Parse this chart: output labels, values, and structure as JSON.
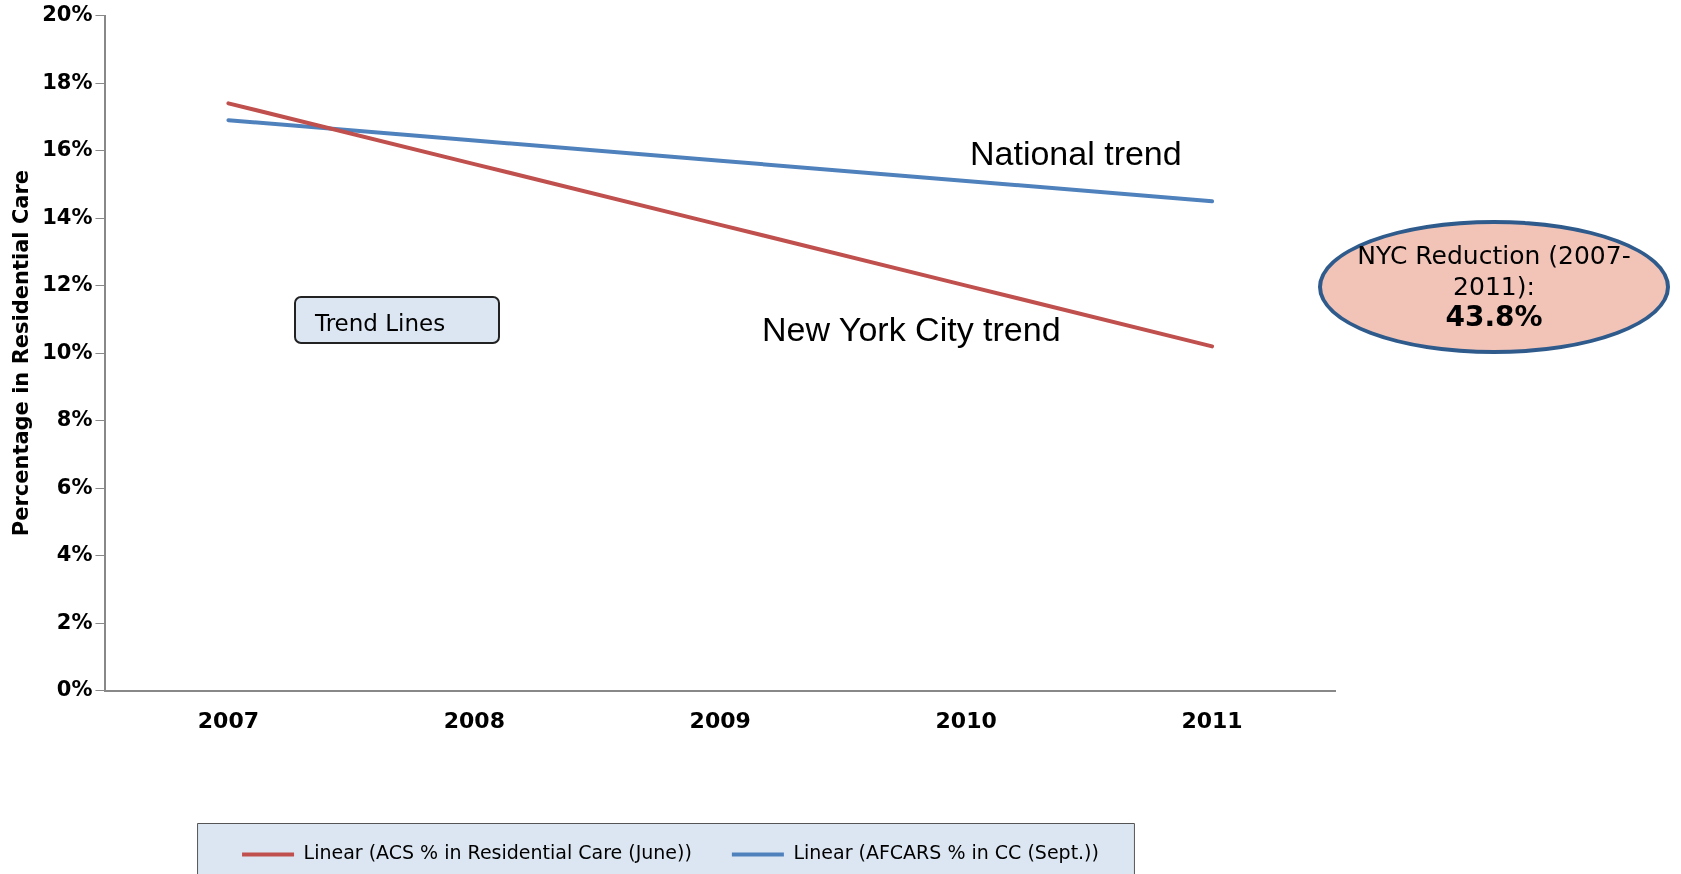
{
  "chart_data": {
    "type": "line",
    "ylabel": "Percentage in Residential Care",
    "categories": [
      "2007",
      "2008",
      "2009",
      "2010",
      "2011"
    ],
    "series": [
      {
        "name": "Linear (ACS % in Residential Care (June))",
        "color": "#c0504d",
        "values": [
          17.4,
          15.6,
          13.8,
          12.0,
          10.2
        ]
      },
      {
        "name": "Linear (AFCARS % in CC (Sept.))",
        "color": "#4f81bd",
        "values": [
          16.9,
          16.3,
          15.7,
          15.1,
          14.5
        ]
      }
    ],
    "ylim": [
      0,
      20
    ],
    "yticks": [
      {
        "value": 0,
        "label": "0%"
      },
      {
        "value": 2,
        "label": "2%"
      },
      {
        "value": 4,
        "label": "4%"
      },
      {
        "value": 6,
        "label": "6%"
      },
      {
        "value": 8,
        "label": "8%"
      },
      {
        "value": 10,
        "label": "10%"
      },
      {
        "value": 12,
        "label": "12%"
      },
      {
        "value": 14,
        "label": "14%"
      },
      {
        "value": 16,
        "label": "16%"
      },
      {
        "value": 18,
        "label": "18%"
      },
      {
        "value": 20,
        "label": "20%"
      }
    ],
    "grid": false,
    "legend": "bottom",
    "marker": "none",
    "line_style": "solid",
    "annotations": [
      "National trend",
      "New York City trend",
      "Trend Lines",
      "NYC Reduction (2007-2011):",
      "43.8%"
    ]
  }
}
